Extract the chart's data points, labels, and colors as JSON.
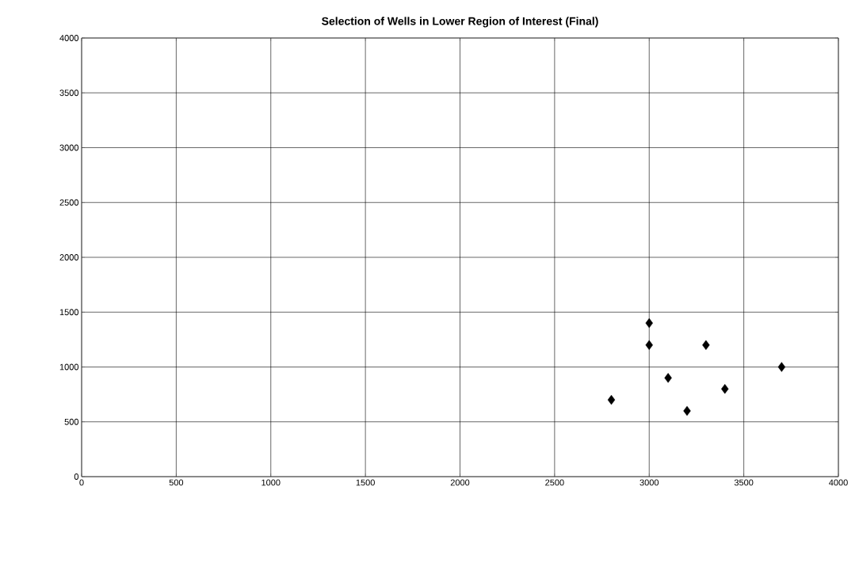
{
  "chart_data": {
    "type": "scatter",
    "title": "Selection of Wells in Lower Region of Interest (Final)",
    "x": [
      2800,
      3000,
      3000,
      3100,
      3200,
      3300,
      3400,
      3700
    ],
    "values": [
      700,
      1400,
      1200,
      900,
      600,
      1200,
      800,
      1000
    ],
    "color": "#000000",
    "marker": "diamond",
    "xlim": [
      0,
      4000
    ],
    "ylim": [
      0,
      4000
    ],
    "xticks": [
      0,
      500,
      1000,
      1500,
      2000,
      2500,
      3000,
      3500,
      4000
    ],
    "yticks": [
      0,
      500,
      1000,
      1500,
      2000,
      2500,
      3000,
      3500,
      4000
    ],
    "grid": true
  }
}
